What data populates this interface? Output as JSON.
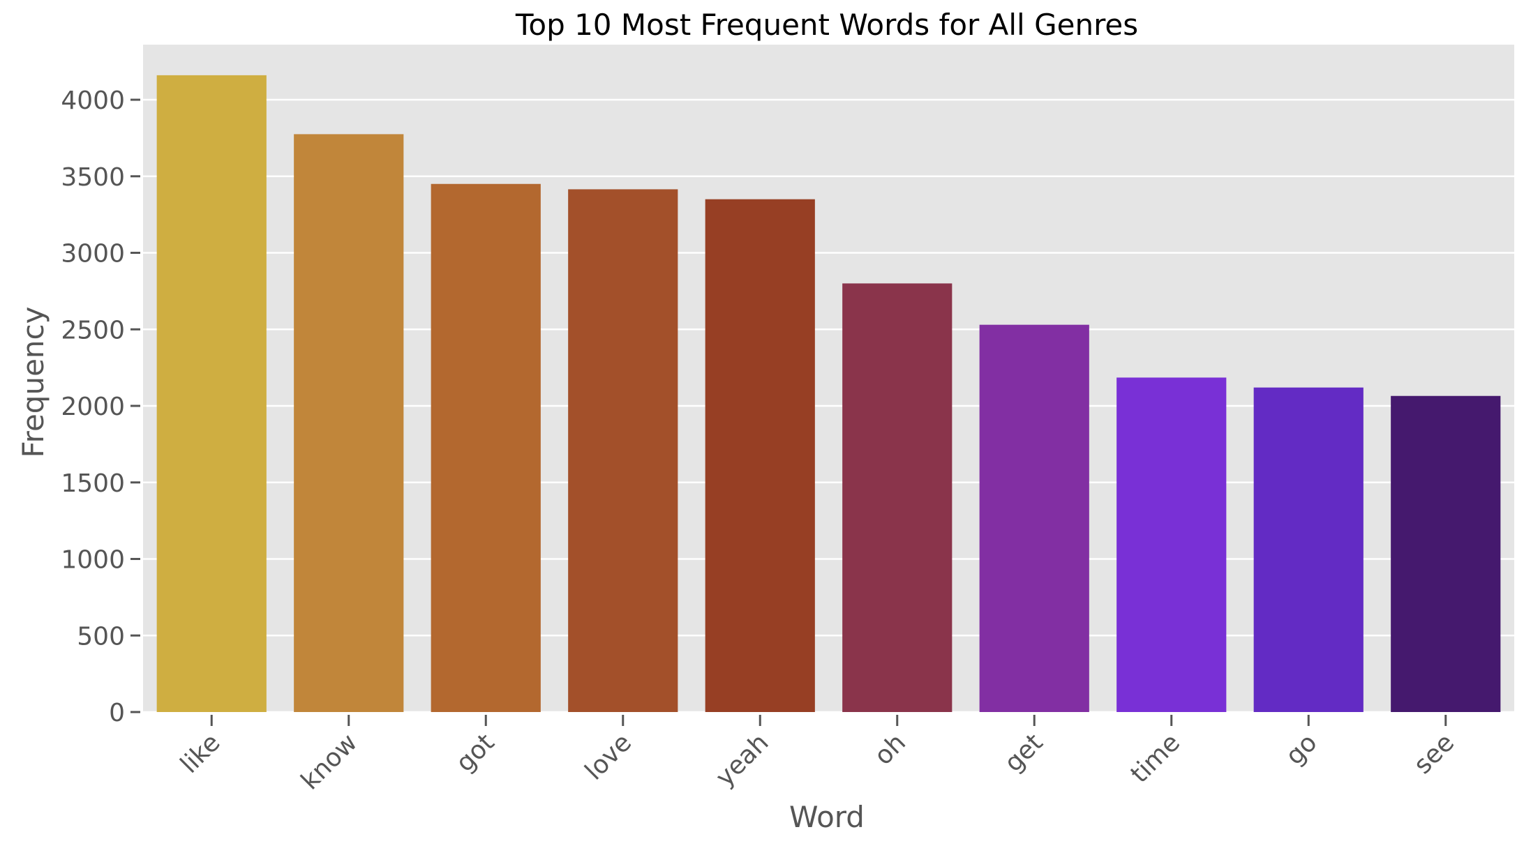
{
  "chart_data": {
    "type": "bar",
    "title": "Top 10 Most Frequent Words for All Genres",
    "xlabel": "Word",
    "ylabel": "Frequency",
    "categories": [
      "like",
      "know",
      "got",
      "love",
      "yeah",
      "oh",
      "get",
      "time",
      "go",
      "see"
    ],
    "values": [
      4160,
      3775,
      3450,
      3415,
      3350,
      2800,
      2530,
      2185,
      2120,
      2065
    ],
    "colors": [
      "#CFAE41",
      "#C1863A",
      "#B3682F",
      "#A3502A",
      "#973F24",
      "#8A344B",
      "#822FA3",
      "#7930D6",
      "#632BC4",
      "#45196E"
    ],
    "yticks": [
      0,
      500,
      1000,
      1500,
      2000,
      2500,
      3000,
      3500,
      4000
    ],
    "ylim": [
      0,
      4360
    ],
    "grid": true,
    "background": "#E5E5E5"
  }
}
